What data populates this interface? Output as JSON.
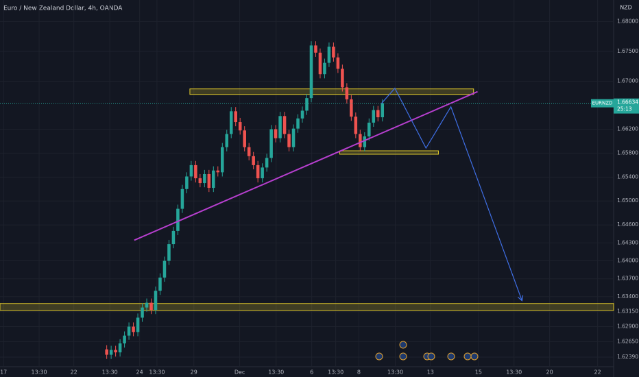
{
  "chart_data": {
    "type": "candlestick",
    "title": "Euro / New Zealand Dollar, 4h, OANDA",
    "currency": "NZD",
    "open": [
      1.6252,
      1.6243,
      1.6251,
      1.6247,
      1.6262,
      1.6275,
      1.629,
      1.6281,
      1.6305,
      1.6322,
      1.633,
      1.6318,
      1.635,
      1.6372,
      1.64,
      1.6428,
      1.645,
      1.6487,
      1.652,
      1.6541,
      1.656,
      1.6538,
      1.653,
      1.6545,
      1.6522,
      1.6551,
      1.6548,
      1.659,
      1.6612,
      1.665,
      1.6632,
      1.6618,
      1.659,
      1.6575,
      1.656,
      1.6538,
      1.6556,
      1.6572,
      1.662,
      1.6605,
      1.6642,
      1.6612,
      1.659,
      1.6621,
      1.6638,
      1.6651,
      1.6672,
      1.676,
      1.6748,
      1.6712,
      1.6731,
      1.6758,
      1.674,
      1.6721,
      1.669,
      1.667,
      1.6641,
      1.6612,
      1.659,
      1.6608,
      1.6631,
      1.6652,
      1.664
    ],
    "high": [
      1.6259,
      1.6258,
      1.6258,
      1.6269,
      1.6282,
      1.6297,
      1.6297,
      1.6312,
      1.6329,
      1.6337,
      1.6337,
      1.6357,
      1.6379,
      1.6407,
      1.6435,
      1.6457,
      1.6494,
      1.6527,
      1.6548,
      1.6567,
      1.6567,
      1.6545,
      1.6552,
      1.6552,
      1.6558,
      1.6558,
      1.6597,
      1.6619,
      1.6657,
      1.6657,
      1.6639,
      1.6625,
      1.6597,
      1.6582,
      1.6567,
      1.6563,
      1.6579,
      1.6627,
      1.6627,
      1.6649,
      1.6649,
      1.6619,
      1.6628,
      1.6645,
      1.6658,
      1.6679,
      1.6767,
      1.6767,
      1.6755,
      1.6738,
      1.6765,
      1.6765,
      1.6747,
      1.6728,
      1.6697,
      1.6677,
      1.6648,
      1.6619,
      1.6615,
      1.6638,
      1.6659,
      1.6659,
      1.667
    ],
    "low": [
      1.6236,
      1.6236,
      1.624,
      1.624,
      1.6255,
      1.6268,
      1.6274,
      1.6274,
      1.6298,
      1.6315,
      1.6311,
      1.6311,
      1.6343,
      1.6365,
      1.6393,
      1.6421,
      1.6443,
      1.648,
      1.6513,
      1.6534,
      1.6531,
      1.6523,
      1.6523,
      1.6515,
      1.6515,
      1.6541,
      1.6541,
      1.6583,
      1.6605,
      1.6625,
      1.6611,
      1.6583,
      1.6568,
      1.6553,
      1.6531,
      1.6531,
      1.6549,
      1.6565,
      1.6598,
      1.6598,
      1.6605,
      1.6583,
      1.6583,
      1.6614,
      1.6631,
      1.6644,
      1.6665,
      1.6741,
      1.6705,
      1.6705,
      1.6724,
      1.6733,
      1.6714,
      1.6683,
      1.6663,
      1.6634,
      1.6605,
      1.6583,
      1.6583,
      1.6601,
      1.6624,
      1.6633,
      1.6633
    ],
    "close": [
      1.6243,
      1.6251,
      1.6247,
      1.6262,
      1.6275,
      1.629,
      1.6281,
      1.6305,
      1.6322,
      1.633,
      1.6318,
      1.635,
      1.6372,
      1.64,
      1.6428,
      1.645,
      1.6487,
      1.652,
      1.6541,
      1.656,
      1.6538,
      1.653,
      1.6545,
      1.6522,
      1.6551,
      1.6548,
      1.659,
      1.6612,
      1.665,
      1.6632,
      1.6618,
      1.659,
      1.6575,
      1.656,
      1.6538,
      1.6556,
      1.6572,
      1.662,
      1.6605,
      1.6642,
      1.6612,
      1.659,
      1.6621,
      1.6638,
      1.6651,
      1.6672,
      1.676,
      1.6748,
      1.6712,
      1.6731,
      1.6758,
      1.674,
      1.6721,
      1.669,
      1.667,
      1.6641,
      1.6612,
      1.659,
      1.6608,
      1.6631,
      1.6652,
      1.664,
      1.66634
    ],
    "up_color": "#26a69a",
    "down_color": "#ef5350",
    "ylim": [
      1.6223,
      1.6836
    ],
    "yticks": [
      {
        "value": 1.68,
        "label": "1.68000"
      },
      {
        "value": 1.675,
        "label": "1.67500"
      },
      {
        "value": 1.67,
        "label": "1.67000"
      },
      {
        "value": 1.662,
        "label": "1.66200"
      },
      {
        "value": 1.658,
        "label": "1.65800"
      },
      {
        "value": 1.654,
        "label": "1.65400"
      },
      {
        "value": 1.65,
        "label": "1.65000"
      },
      {
        "value": 1.646,
        "label": "1.64600"
      },
      {
        "value": 1.643,
        "label": "1.64300"
      },
      {
        "value": 1.64,
        "label": "1.64000"
      },
      {
        "value": 1.637,
        "label": "1.63700"
      },
      {
        "value": 1.634,
        "label": "1.63400"
      },
      {
        "value": 1.6315,
        "label": "1.63150"
      },
      {
        "value": 1.629,
        "label": "1.62900"
      },
      {
        "value": 1.6265,
        "label": "1.62650"
      },
      {
        "value": 1.6239,
        "label": "1.62390"
      }
    ],
    "xlim": [
      -24,
      114
    ],
    "xticks": [
      {
        "value": -23.2,
        "label": "17"
      },
      {
        "value": -15.2,
        "label": "13:30"
      },
      {
        "value": -7.4,
        "label": "22"
      },
      {
        "value": 0.7,
        "label": "13:30"
      },
      {
        "value": 7.4,
        "label": "24"
      },
      {
        "value": 11.3,
        "label": "13:30"
      },
      {
        "value": 19.6,
        "label": "29"
      },
      {
        "value": 29.9,
        "label": "Dec"
      },
      {
        "value": 38.1,
        "label": "13:30"
      },
      {
        "value": 46.1,
        "label": "6"
      },
      {
        "value": 51.5,
        "label": "13:30"
      },
      {
        "value": 56.7,
        "label": "8"
      },
      {
        "value": 64.9,
        "label": "13:30"
      },
      {
        "value": 72.8,
        "label": "13"
      },
      {
        "value": 83.6,
        "label": "15"
      },
      {
        "value": 91.6,
        "label": "13:30"
      },
      {
        "value": 99.6,
        "label": "20"
      },
      {
        "value": 110.4,
        "label": "22"
      }
    ],
    "grid": true,
    "last_price": {
      "symbol": "EURNZD",
      "value": 1.66634,
      "countdown": "25:13"
    },
    "zones": [
      {
        "x": [
          18.7,
          82.5
        ],
        "y": [
          1.66782,
          1.66874
        ]
      },
      {
        "x": [
          52.4,
          74.6
        ],
        "y": [
          1.65782,
          1.65839
        ]
      },
      {
        "x": [
          -24,
          114
        ],
        "y": [
          1.63172,
          1.63287
        ]
      }
    ],
    "zone_color": "#e0c92b",
    "trendline": {
      "x": [
        6.2,
        83.4
      ],
      "y": [
        1.64345,
        1.66828
      ],
      "color": "#b73fcf"
    },
    "projection": {
      "x": [
        61.8,
        64.8,
        71.8,
        77.4,
        93.4
      ],
      "y": [
        1.66632,
        1.66885,
        1.65885,
        1.66575,
        1.63333
      ],
      "color": "#3f6fe6"
    }
  }
}
